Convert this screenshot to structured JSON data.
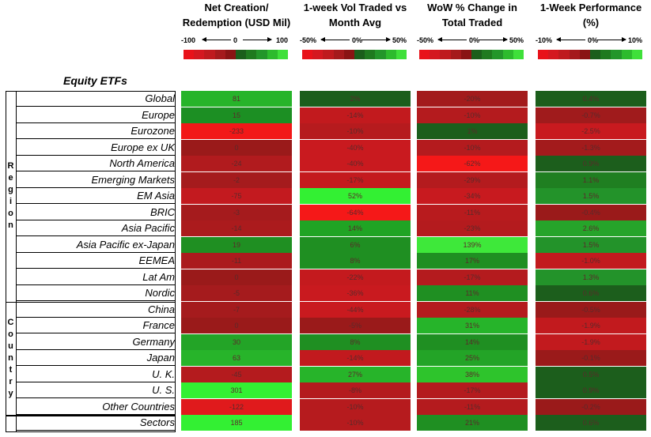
{
  "columns": [
    {
      "header_line1": "Net Creation/",
      "header_line2": "Redemption (USD Mil)",
      "scale_min": "-100",
      "scale_mid": "0",
      "scale_max": "100"
    },
    {
      "header_line1": "1-week Vol Traded vs",
      "header_line2": "Month Avg",
      "scale_min": "-50%",
      "scale_mid": "0%",
      "scale_max": "50%"
    },
    {
      "header_line1": "WoW % Change in",
      "header_line2": "Total Traded",
      "scale_min": "-50%",
      "scale_mid": "0%",
      "scale_max": "50%"
    },
    {
      "header_line1": "1-Week Performance",
      "header_line2": "(%)",
      "scale_min": "-10%",
      "scale_mid": "0%",
      "scale_max": "10%"
    }
  ],
  "scale_colors": [
    "#e8121a",
    "#d41820",
    "#bf1a1e",
    "#a51a1c",
    "#8a1414",
    "#1b5e1b",
    "#1f7a1f",
    "#23962a",
    "#2dbb2d",
    "#3fe03a"
  ],
  "section_title": "Equity ETFs",
  "groups": [
    {
      "label_letters": [
        "R",
        "e",
        "g",
        "i",
        "o",
        "n"
      ]
    },
    {
      "label_letters": [
        "C",
        "o",
        "u",
        "n",
        "t",
        "r",
        "y"
      ]
    }
  ],
  "rows": [
    {
      "label": "Global",
      "values": [
        "81",
        "2%",
        "-20%",
        "0.4%"
      ],
      "colors": [
        "#27b42a",
        "#1c5e1c",
        "#a31b1c",
        "#1c5e1c"
      ]
    },
    {
      "label": "Europe",
      "values": [
        "15",
        "-14%",
        "-10%",
        "-0.7%"
      ],
      "colors": [
        "#1c8f23",
        "#c21a1e",
        "#b41b1e",
        "#a01b1c"
      ]
    },
    {
      "label": "Eurozone",
      "values": [
        "-233",
        "-10%",
        "1%",
        "-2.5%"
      ],
      "colors": [
        "#f21818",
        "#b61b1e",
        "#1c5e1c",
        "#c81a1f"
      ]
    },
    {
      "label": "Europe ex UK",
      "values": [
        "0",
        "-40%",
        "-10%",
        "-1.3%"
      ],
      "colors": [
        "#9a1a1a",
        "#c91a1f",
        "#b41b1e",
        "#a31b1c"
      ]
    },
    {
      "label": "North America",
      "values": [
        "-24",
        "-40%",
        "-62%",
        "0.9%"
      ],
      "colors": [
        "#b11b1e",
        "#c91a1f",
        "#f51818",
        "#1c5e1c"
      ]
    },
    {
      "label": "Emerging Markets",
      "values": [
        "-2",
        "-17%",
        "-29%",
        "1.1%"
      ],
      "colors": [
        "#a51b1d",
        "#c41a1e",
        "#b41b1e",
        "#1f7f21"
      ]
    },
    {
      "label": "EM Asia",
      "values": [
        "-75",
        "52%",
        "-34%",
        "1.5%"
      ],
      "colors": [
        "#c31a1f",
        "#33f033",
        "#c81a1f",
        "#23932a"
      ]
    },
    {
      "label": "BRIC",
      "values": [
        "-3",
        "-64%",
        "-11%",
        "-0.4%"
      ],
      "colors": [
        "#a51b1d",
        "#f51818",
        "#b81b1e",
        "#9a1a1a"
      ]
    },
    {
      "label": "Asia Pacific",
      "values": [
        "-14",
        "14%",
        "-23%",
        "2.6%"
      ],
      "colors": [
        "#ab1b1d",
        "#20a424",
        "#b41b1e",
        "#26a42a"
      ]
    },
    {
      "label": "Asia Pacific ex-Japan",
      "values": [
        "19",
        "6%",
        "139%",
        "1.5%"
      ],
      "colors": [
        "#1f8f22",
        "#1f8f22",
        "#3ee83a",
        "#23932a"
      ]
    },
    {
      "label": "EEMEA",
      "values": [
        "-11",
        "8%",
        "17%",
        "-1.0%"
      ],
      "colors": [
        "#ab1b1d",
        "#1f8f22",
        "#1f8f22",
        "#c21a1e"
      ]
    },
    {
      "label": "Lat Am",
      "values": [
        "0",
        "-22%",
        "-17%",
        "1.3%"
      ],
      "colors": [
        "#9a1a1a",
        "#c41a1e",
        "#b41b1e",
        "#23932a"
      ]
    },
    {
      "label": "Nordic",
      "values": [
        "-5",
        "-36%",
        "11%",
        "0.6%"
      ],
      "colors": [
        "#a51b1d",
        "#c91a1f",
        "#1f8f22",
        "#1c5e1c"
      ]
    },
    {
      "label": "China",
      "values": [
        "-7",
        "-44%",
        "-28%",
        "-0.5%"
      ],
      "colors": [
        "#a51b1d",
        "#c91a1f",
        "#b41b1e",
        "#9a1a1a"
      ]
    },
    {
      "label": "France",
      "values": [
        "0",
        "-5%",
        "31%",
        "-1.9%"
      ],
      "colors": [
        "#9a1a1a",
        "#9a1a1a",
        "#26b42a",
        "#c21a1e"
      ]
    },
    {
      "label": "Germany",
      "values": [
        "30",
        "8%",
        "14%",
        "-1.9%"
      ],
      "colors": [
        "#23a427",
        "#1f8f22",
        "#1f8f22",
        "#c21a1e"
      ]
    },
    {
      "label": "Japan",
      "values": [
        "63",
        "-14%",
        "25%",
        "-0.1%"
      ],
      "colors": [
        "#27b42a",
        "#c21a1e",
        "#23a427",
        "#9a1a1a"
      ]
    },
    {
      "label": "U. K.",
      "values": [
        "-45",
        "27%",
        "38%",
        "0.5%"
      ],
      "colors": [
        "#b41b1e",
        "#27b42a",
        "#2ec42c",
        "#1c5e1c"
      ]
    },
    {
      "label": "U. S.",
      "values": [
        "301",
        "-8%",
        "-17%",
        "0.9%"
      ],
      "colors": [
        "#33f033",
        "#b41b1e",
        "#b41b1e",
        "#1c5e1c"
      ]
    },
    {
      "label": "Other Countries",
      "values": [
        "-122",
        "-10%",
        "-11%",
        "-0.2%"
      ],
      "colors": [
        "#e01a1c",
        "#b61b1e",
        "#b41b1e",
        "#9a1a1a"
      ]
    },
    {
      "label": "Sectors",
      "values": [
        "185",
        "-10%",
        "21%",
        "0.6%"
      ],
      "colors": [
        "#33f033",
        "#b61b1e",
        "#1f8f22",
        "#1c5e1c"
      ]
    }
  ]
}
